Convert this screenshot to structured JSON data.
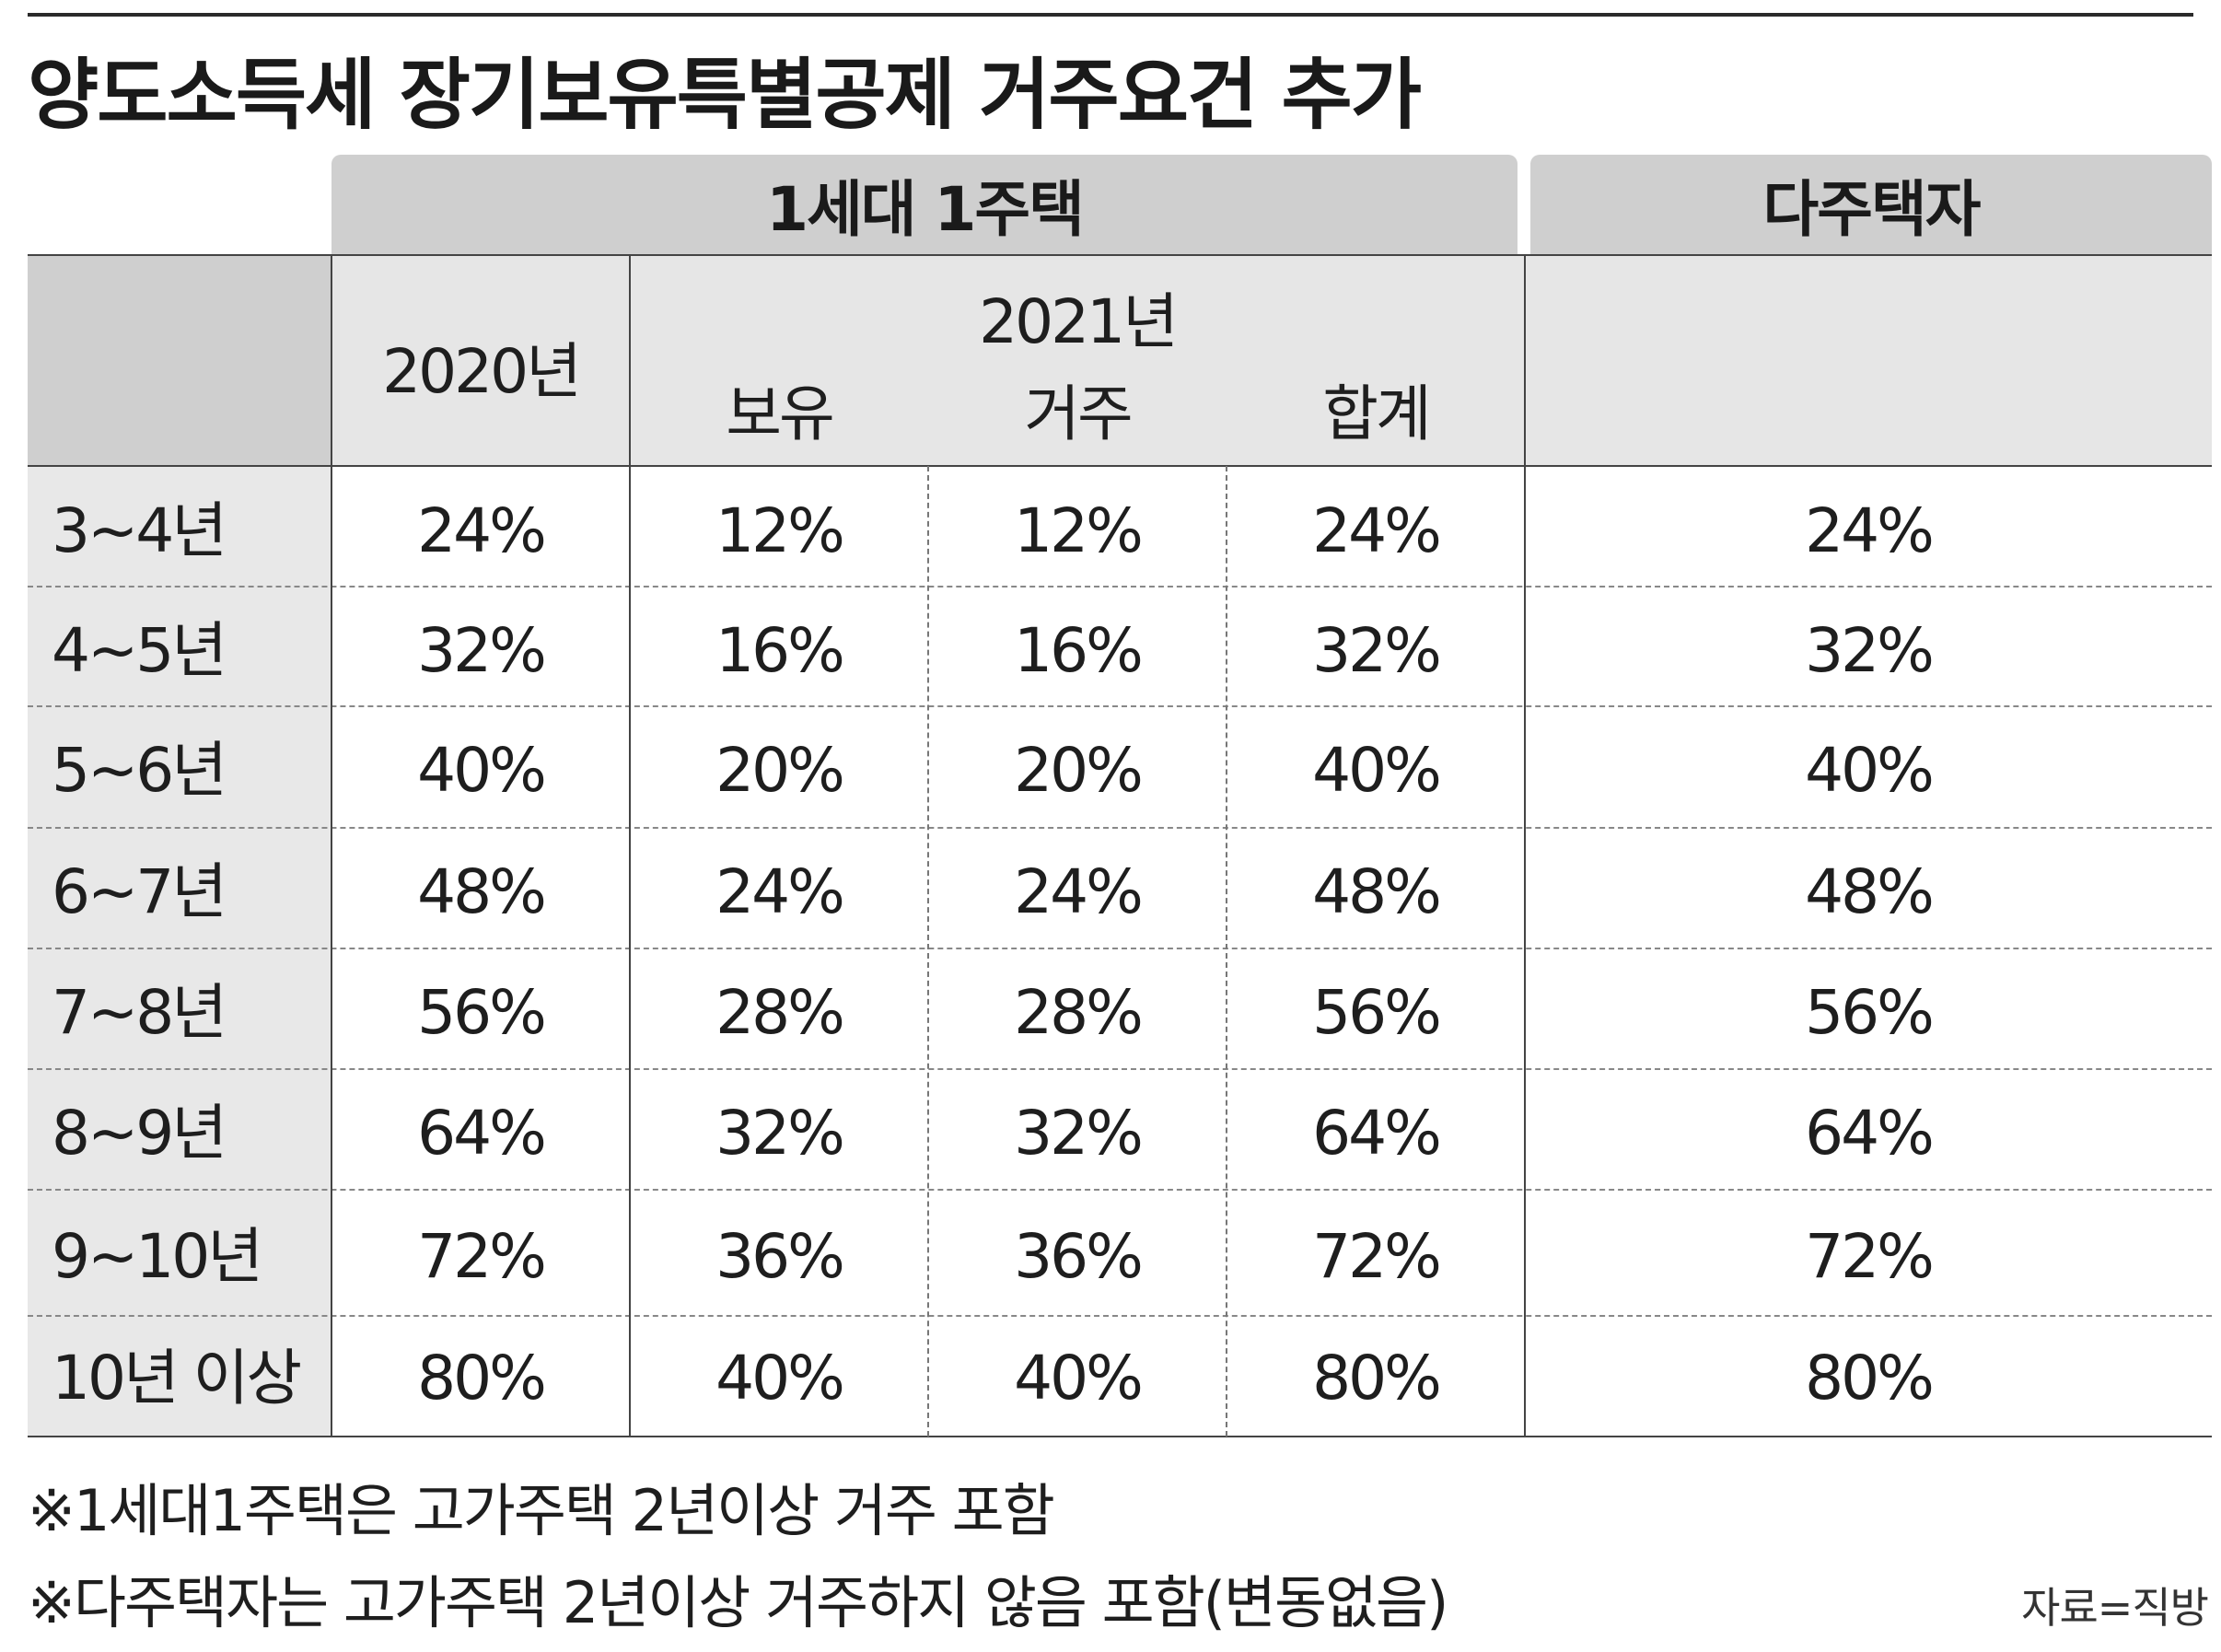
{
  "title": "양도소득세 장기보유특별공제 거주요건 추가",
  "header": {
    "group_single": "1세대 1주택",
    "group_multi": "다주택자",
    "col_2020": "2020년",
    "col_2021": "2021년",
    "sub_hold": "보유",
    "sub_reside": "거주",
    "sub_total": "합계"
  },
  "rows": [
    {
      "label": "3~4년",
      "y2020": "24%",
      "hold": "12%",
      "reside": "12%",
      "total": "24%",
      "multi": "24%"
    },
    {
      "label": "4~5년",
      "y2020": "32%",
      "hold": "16%",
      "reside": "16%",
      "total": "32%",
      "multi": "32%"
    },
    {
      "label": "5~6년",
      "y2020": "40%",
      "hold": "20%",
      "reside": "20%",
      "total": "40%",
      "multi": "40%"
    },
    {
      "label": "6~7년",
      "y2020": "48%",
      "hold": "24%",
      "reside": "24%",
      "total": "48%",
      "multi": "48%"
    },
    {
      "label": "7~8년",
      "y2020": "56%",
      "hold": "28%",
      "reside": "28%",
      "total": "56%",
      "multi": "56%"
    },
    {
      "label": "8~9년",
      "y2020": "64%",
      "hold": "32%",
      "reside": "32%",
      "total": "64%",
      "multi": "64%"
    },
    {
      "label": "9~10년",
      "y2020": "72%",
      "hold": "36%",
      "reside": "36%",
      "total": "72%",
      "multi": "72%"
    },
    {
      "label": "10년 이상",
      "y2020": "80%",
      "hold": "40%",
      "reside": "40%",
      "total": "80%",
      "multi": "80%"
    }
  ],
  "notes": [
    "※1세대1주택은 고가주택 2년이상 거주 포함",
    "※다주택자는 고가주택 2년이상 거주하지 않음 포함(변동없음)"
  ],
  "source": "자료=직방"
}
